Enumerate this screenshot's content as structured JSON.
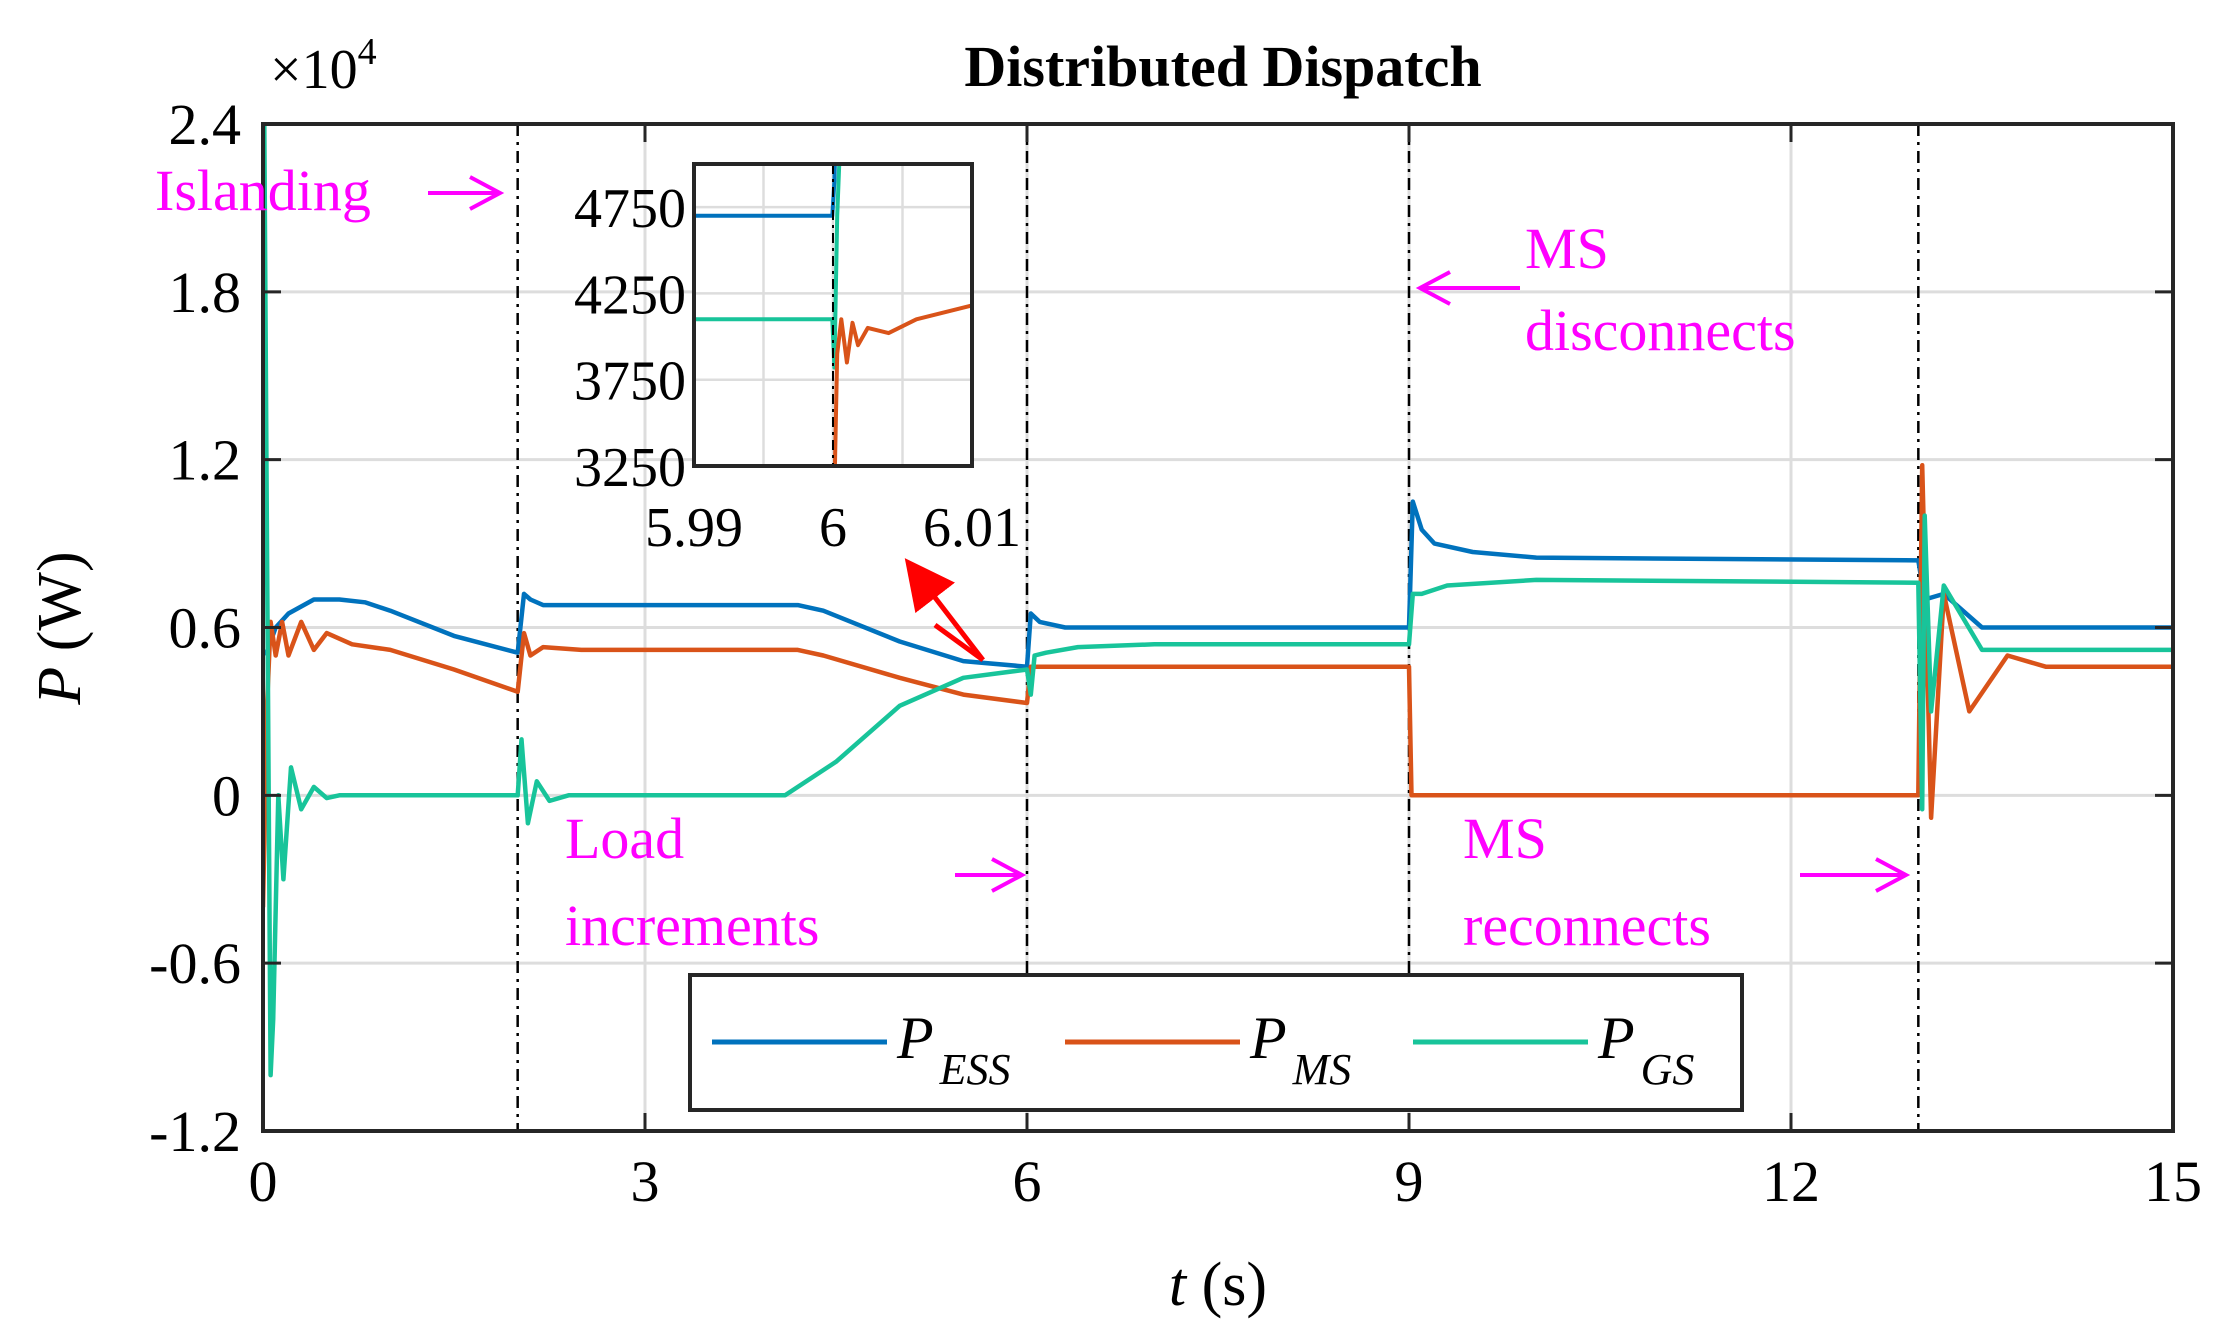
{
  "chart_data": {
    "type": "line",
    "title": "Distributed Dispatch",
    "xlabel_var": "t",
    "xlabel_unit": " (s)",
    "ylabel_var": "P",
    "ylabel_unit": " (W)",
    "y_exponent_base": "×10",
    "y_exponent_power": "4",
    "xlim": [
      0,
      15
    ],
    "ylim": [
      -1.2,
      2.4
    ],
    "xticks": [
      0,
      3,
      6,
      9,
      12,
      15
    ],
    "yticks": [
      -1.2,
      -0.6,
      0,
      0.6,
      1.2,
      1.8,
      2.4
    ],
    "xtick_labels": [
      "0",
      "3",
      "6",
      "9",
      "12",
      "15"
    ],
    "ytick_labels": [
      "-1.2",
      "-0.6",
      "0",
      "0.6",
      "1.2",
      "1.8",
      "2.4"
    ],
    "grid": true,
    "event_times": [
      2,
      6,
      9,
      13
    ],
    "colors": {
      "ess": "#0072BD",
      "ms": "#D95319",
      "gs": "#18C49A",
      "annotation": "#FF00FF",
      "arrow": "#FF0000"
    },
    "series": [
      {
        "key": "ess",
        "name": "ESS",
        "legend_var": "P",
        "legend_sub": "ESS",
        "color": "#0072BD",
        "x": [
          0.02,
          0.1,
          0.2,
          0.4,
          0.6,
          0.8,
          1.0,
          1.5,
          2.0,
          2.05,
          2.1,
          2.2,
          2.4,
          3.0,
          4.2,
          4.4,
          5.0,
          5.5,
          6.0,
          6.03,
          6.1,
          6.3,
          7.0,
          9.0,
          9.03,
          9.1,
          9.2,
          9.5,
          10.0,
          13.0,
          13.05,
          13.2,
          13.5,
          14.0,
          15.0
        ],
        "y": [
          0.5,
          0.6,
          0.65,
          0.7,
          0.7,
          0.69,
          0.66,
          0.57,
          0.51,
          0.72,
          0.7,
          0.68,
          0.68,
          0.68,
          0.68,
          0.66,
          0.55,
          0.48,
          0.46,
          0.65,
          0.62,
          0.6,
          0.6,
          0.6,
          1.05,
          0.95,
          0.9,
          0.87,
          0.85,
          0.84,
          0.7,
          0.72,
          0.6,
          0.6,
          0.6
        ]
      },
      {
        "key": "ms",
        "name": "MS",
        "legend_var": "P",
        "legend_sub": "MS",
        "color": "#D95319",
        "x": [
          0.0,
          0.03,
          0.06,
          0.1,
          0.15,
          0.2,
          0.3,
          0.4,
          0.5,
          0.7,
          1.0,
          1.5,
          2.0,
          2.05,
          2.1,
          2.2,
          2.5,
          3.0,
          4.2,
          4.4,
          5.0,
          5.5,
          6.0,
          6.03,
          6.1,
          6.5,
          9.0,
          9.02,
          13.0,
          13.03,
          13.1,
          13.2,
          13.4,
          13.7,
          14.0,
          15.0
        ],
        "y": [
          -0.4,
          0.3,
          0.62,
          0.5,
          0.62,
          0.5,
          0.62,
          0.52,
          0.58,
          0.54,
          0.52,
          0.45,
          0.37,
          0.58,
          0.5,
          0.53,
          0.52,
          0.52,
          0.52,
          0.5,
          0.42,
          0.36,
          0.33,
          0.46,
          0.46,
          0.46,
          0.46,
          0.0,
          0.0,
          1.18,
          -0.08,
          0.72,
          0.3,
          0.5,
          0.46,
          0.46
        ]
      },
      {
        "key": "gs",
        "name": "GS",
        "legend_var": "P",
        "legend_sub": "GS",
        "color": "#18C49A",
        "x": [
          0.0,
          0.01,
          0.03,
          0.06,
          0.08,
          0.12,
          0.16,
          0.22,
          0.3,
          0.4,
          0.5,
          0.6,
          0.8,
          1.0,
          2.0,
          2.03,
          2.08,
          2.15,
          2.25,
          2.4,
          2.6,
          3.0,
          4.1,
          4.5,
          5.0,
          5.5,
          6.0,
          6.03,
          6.06,
          6.15,
          6.4,
          7.0,
          9.0,
          9.03,
          9.1,
          9.3,
          10.0,
          13.0,
          13.03,
          13.05,
          13.1,
          13.2,
          13.5,
          14.0,
          15.0
        ],
        "y": [
          1.9,
          2.4,
          1.0,
          -1.0,
          -0.8,
          0.0,
          -0.3,
          0.1,
          -0.05,
          0.03,
          -0.01,
          0.0,
          0.0,
          0.0,
          0.0,
          0.2,
          -0.1,
          0.05,
          -0.02,
          0.0,
          0.0,
          0.0,
          0.0,
          0.12,
          0.32,
          0.42,
          0.45,
          0.36,
          0.5,
          0.51,
          0.53,
          0.54,
          0.54,
          0.72,
          0.72,
          0.75,
          0.77,
          0.76,
          -0.05,
          1.0,
          0.3,
          0.75,
          0.52,
          0.52,
          0.52
        ]
      }
    ],
    "inset": {
      "xlim": [
        5.99,
        6.01
      ],
      "ylim": [
        3250,
        5000
      ],
      "xtick_labels": [
        "5.99",
        "6",
        "6.01"
      ],
      "ytick_labels": [
        "4750",
        "4250",
        "3750",
        "3250"
      ],
      "yticks": [
        4750,
        4250,
        3750,
        3250
      ],
      "xticks": [
        5.99,
        6.0,
        6.01
      ]
    },
    "annotations": [
      {
        "key": "islanding",
        "lines": [
          "Islanding"
        ]
      },
      {
        "key": "load",
        "lines": [
          "Load",
          "increments"
        ]
      },
      {
        "key": "ms_disc",
        "lines": [
          "MS",
          "disconnects"
        ]
      },
      {
        "key": "ms_reconn",
        "lines": [
          "MS",
          "reconnects"
        ]
      }
    ]
  }
}
